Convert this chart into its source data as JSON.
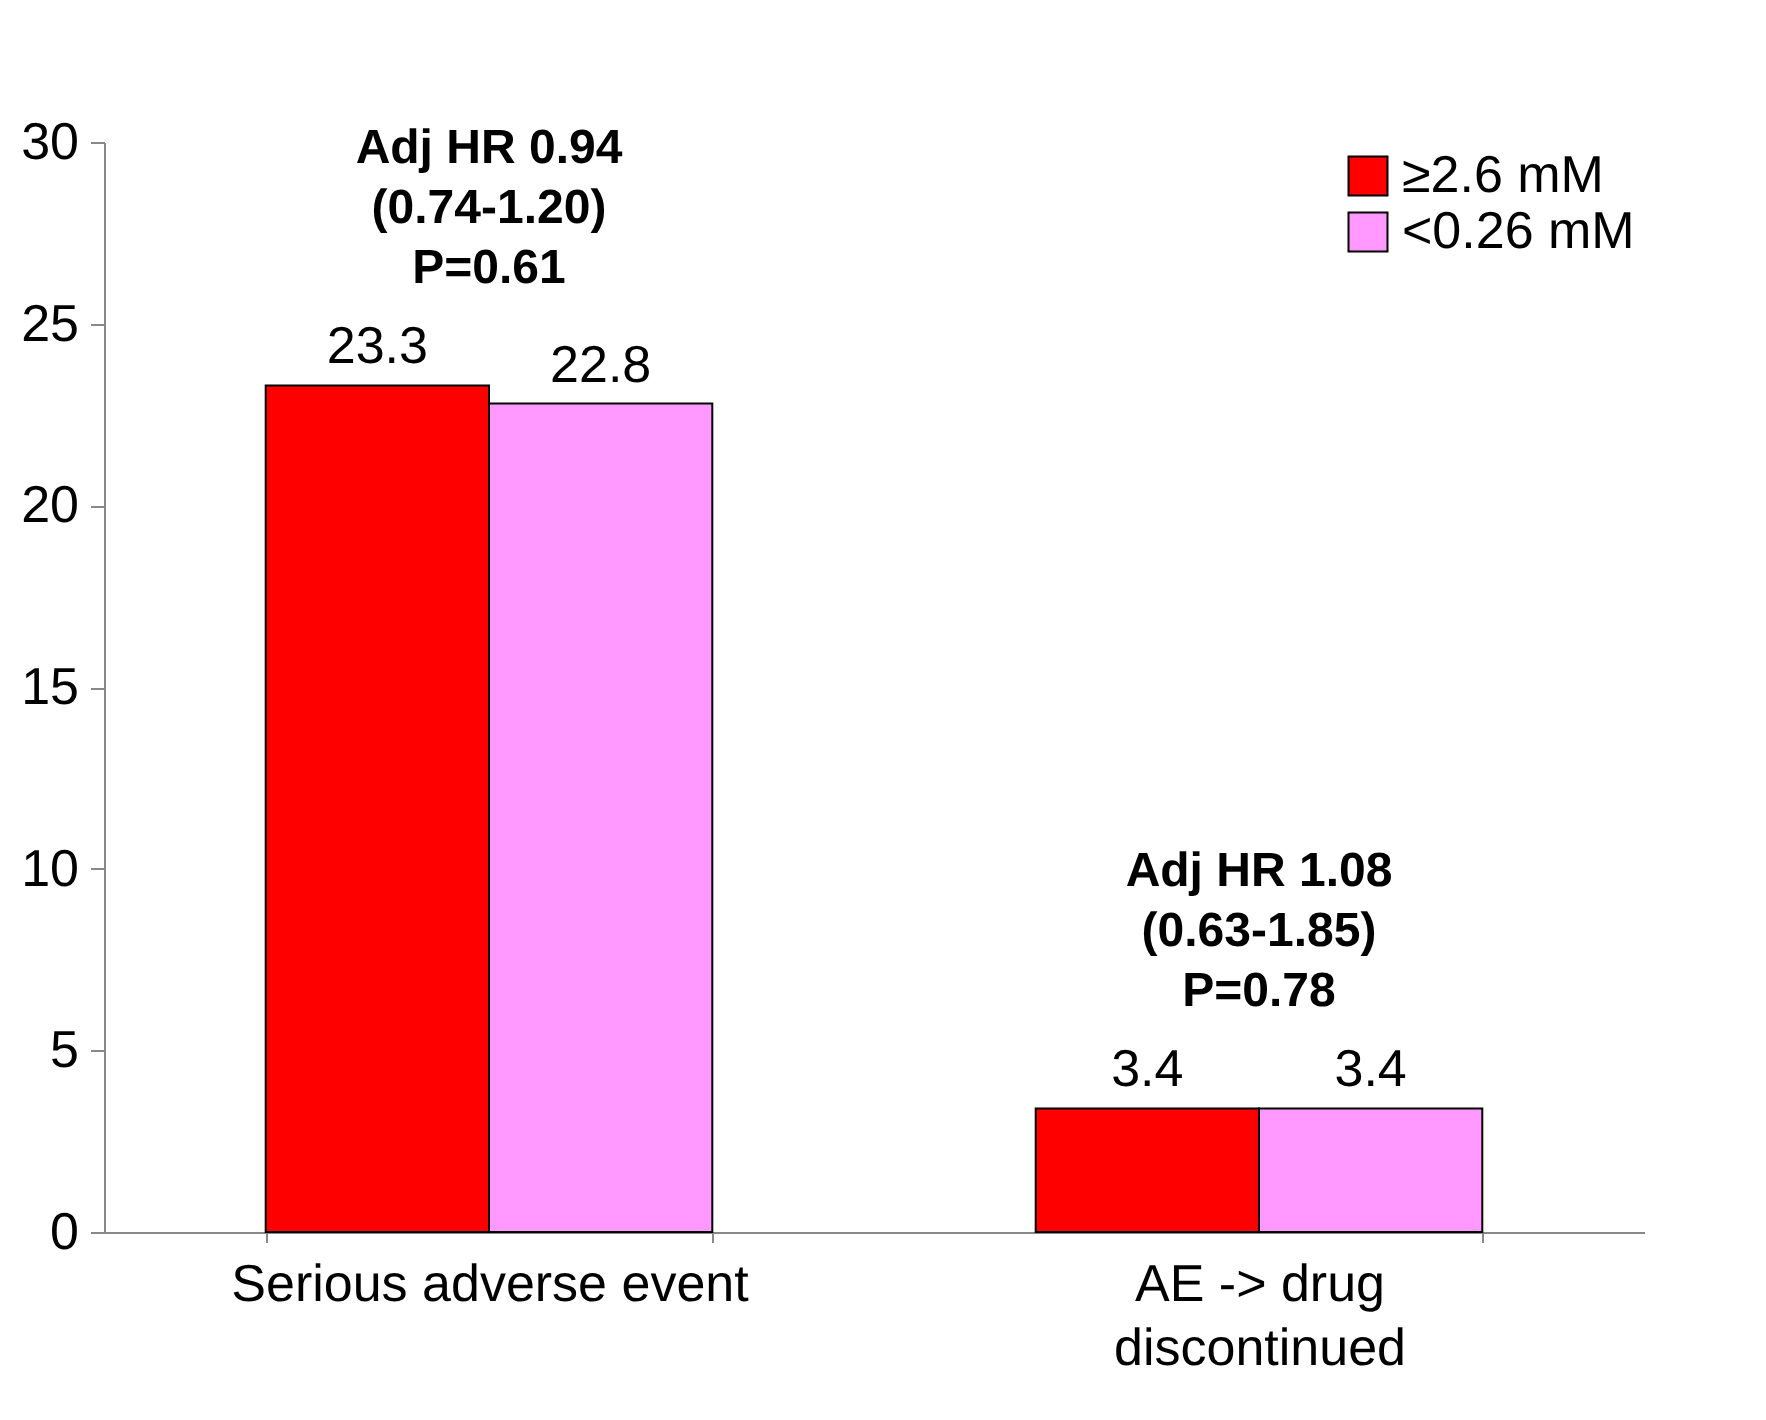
{
  "chart_data": {
    "type": "bar",
    "categories": [
      "Serious adverse event",
      "AE -> drug\ndiscontinued"
    ],
    "series": [
      {
        "name": "≥2.6 mM",
        "color": "#ff0000",
        "values": [
          23.3,
          3.4
        ]
      },
      {
        "name": "<0.26 mM",
        "color": "#ff99ff",
        "values": [
          22.8,
          3.4
        ]
      }
    ],
    "ylim": [
      0,
      30
    ],
    "yticks": [
      0,
      5,
      10,
      15,
      20,
      25,
      30
    ],
    "grid": false,
    "legend": "top right",
    "data_labels": true,
    "annotations": [
      {
        "text": "Adj HR 0.94\n(0.74-1.20)\nP=0.61",
        "x": "Serious adverse event",
        "y": 23.3
      },
      {
        "text": "Adj HR 1.08\n(0.63-1.85)\nP=0.78",
        "x": "AE -> drug\ndiscontinued",
        "y": 3.4
      }
    ]
  }
}
